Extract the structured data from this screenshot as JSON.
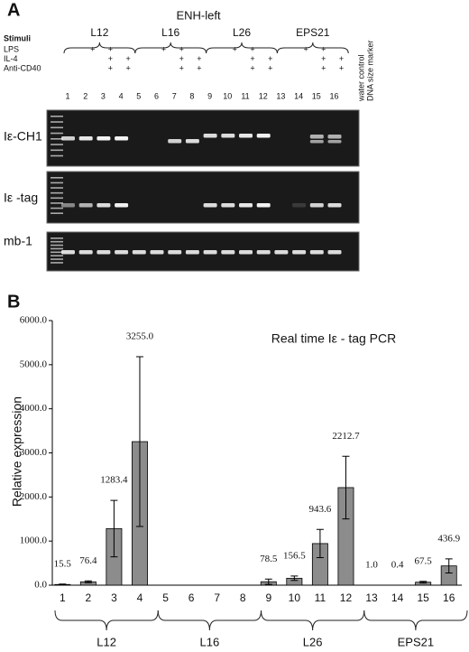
{
  "panel_a": {
    "label": "A",
    "title": "ENH-left",
    "groups": [
      "L12",
      "L16",
      "L26",
      "EPS21"
    ],
    "stimuli_title": "Stimuli",
    "stimuli": [
      {
        "name": "LPS",
        "lanes": [
          2,
          3
        ]
      },
      {
        "name": "IL-4",
        "lanes": [
          3,
          4
        ]
      },
      {
        "name": "Anti-CD40",
        "lanes": [
          3,
          4
        ]
      }
    ],
    "plus": "+",
    "lanes": [
      "1",
      "2",
      "3",
      "4",
      "5",
      "6",
      "7",
      "8",
      "9",
      "10",
      "11",
      "12",
      "13",
      "14",
      "15",
      "16"
    ],
    "controls": [
      "water control",
      "DNA size marker"
    ],
    "gels": [
      "Iε-CH1",
      "Iε -tag",
      "mb-1"
    ]
  },
  "chart_data": {
    "type": "bar",
    "label": "B",
    "title": "Real time Iε - tag PCR",
    "y_label": "Relative expression",
    "categories": [
      "1",
      "2",
      "3",
      "4",
      "5",
      "6",
      "7",
      "8",
      "9",
      "10",
      "11",
      "12",
      "13",
      "14",
      "15",
      "16"
    ],
    "values": [
      15.5,
      76.4,
      1283.4,
      3255.0,
      0,
      0,
      0,
      0,
      78.5,
      156.5,
      943.6,
      2212.7,
      1.0,
      0.4,
      67.5,
      436.9
    ],
    "value_labels": [
      "15.5",
      "76.4",
      "1283.4",
      "3255.0",
      null,
      null,
      null,
      null,
      "78.5",
      "156.5",
      "943.6",
      "2212.7",
      "1.0",
      "0.4",
      "67.5",
      "436.9"
    ],
    "errors": [
      10,
      20,
      640,
      1925,
      0,
      0,
      0,
      0,
      60,
      50,
      320,
      710,
      0,
      0,
      20,
      160
    ],
    "color": "#8c8c8c",
    "groups": [
      "L12",
      "L16",
      "L26",
      "EPS21"
    ],
    "ylim": [
      0,
      6000
    ],
    "yticks": [
      {
        "value": 0,
        "label": "0.0"
      },
      {
        "value": 1000,
        "label": "1000.0"
      },
      {
        "value": 2000,
        "label": "2000.0"
      },
      {
        "value": 3000,
        "label": "3000.0"
      },
      {
        "value": 4000,
        "label": "4000.0"
      },
      {
        "value": 5000,
        "label": "5000.0"
      },
      {
        "value": 6000,
        "label": "6000.0"
      }
    ]
  }
}
